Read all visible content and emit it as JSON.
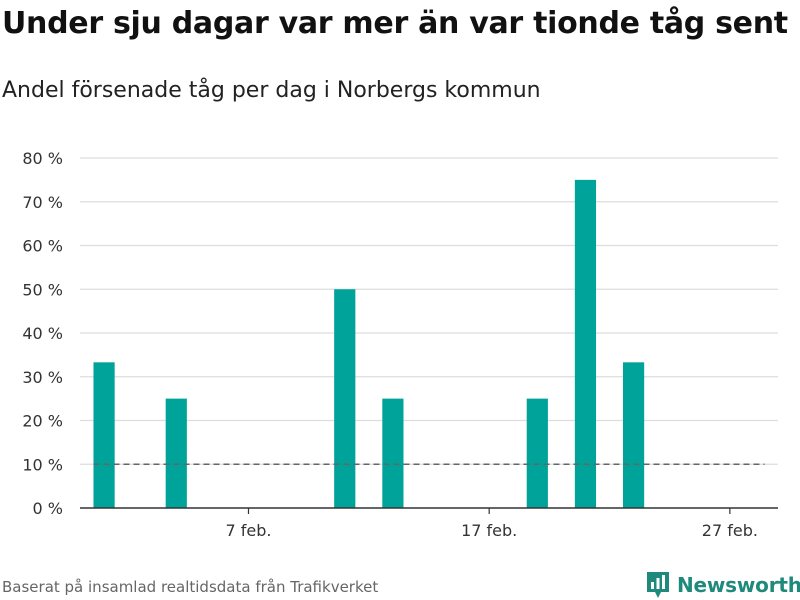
{
  "title": "Under sju dagar var mer än var tionde tåg sent",
  "subtitle": "Andel försenade tåg per dag i Norbergs kommun",
  "source": "Baserat på insamlad realtidsdata från Trafikverket",
  "brand": {
    "name": "Newsworthy",
    "color": "#1f8a7c",
    "icon": "newsworthy-logo-icon"
  },
  "chart_data": {
    "type": "bar",
    "title": "Under sju dagar var mer än var tionde tåg sent",
    "subtitle": "Andel försenade tåg per dag i Norbergs kommun",
    "xlabel": "",
    "ylabel": "",
    "ylim": [
      0,
      80
    ],
    "yticks": [
      0,
      10,
      20,
      30,
      40,
      50,
      60,
      70,
      80
    ],
    "ytick_labels": [
      "0 %",
      "10 %",
      "20 %",
      "30 %",
      "40 %",
      "50 %",
      "60 %",
      "70 %",
      "80 %"
    ],
    "x_range": [
      "2024-01-31",
      "2024-02-29"
    ],
    "xticks": [
      "2024-02-07",
      "2024-02-17",
      "2024-02-27"
    ],
    "xtick_labels": [
      "7 feb.",
      "17 feb.",
      "27 feb."
    ],
    "bar_color": "#00a39a",
    "grid": true,
    "x": [
      "2024-02-01",
      "2024-02-02",
      "2024-02-03",
      "2024-02-04",
      "2024-02-05",
      "2024-02-06",
      "2024-02-07",
      "2024-02-08",
      "2024-02-09",
      "2024-02-10",
      "2024-02-11",
      "2024-02-12",
      "2024-02-13",
      "2024-02-14",
      "2024-02-15",
      "2024-02-16",
      "2024-02-17",
      "2024-02-18",
      "2024-02-19",
      "2024-02-20",
      "2024-02-21",
      "2024-02-22",
      "2024-02-23",
      "2024-02-24",
      "2024-02-25",
      "2024-02-26",
      "2024-02-27",
      "2024-02-28"
    ],
    "values": [
      33.3,
      0,
      0,
      25,
      0,
      0,
      0,
      0,
      0,
      0,
      50,
      0,
      25,
      0,
      0,
      0,
      0,
      0,
      25,
      0,
      75,
      0,
      33.3,
      0,
      0,
      0,
      0,
      0
    ],
    "reference_line": {
      "value": 10,
      "style": "dashed",
      "color": "#666666"
    }
  }
}
